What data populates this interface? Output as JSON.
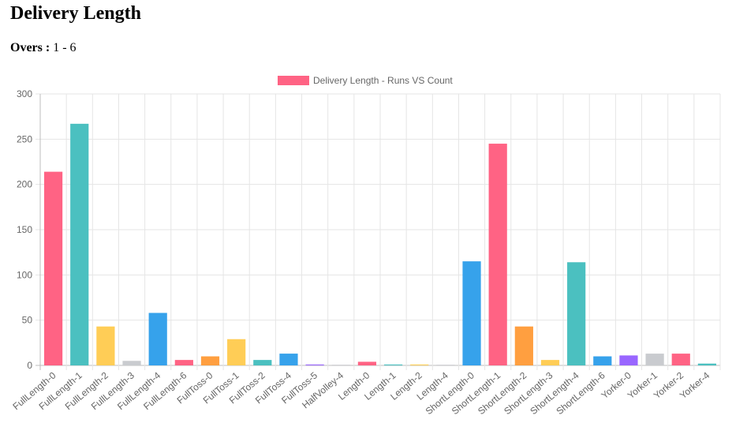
{
  "page": {
    "title": "Delivery Length",
    "overs_label": "Overs :",
    "overs_value": "1 - 6"
  },
  "chart_data": {
    "type": "bar",
    "legend": {
      "label": "Delivery Length - Runs VS Count",
      "color": "#ff6384",
      "position": "top"
    },
    "categories": [
      "FullLength-0",
      "FullLength-1",
      "FullLength-2",
      "FullLength-3",
      "FullLength-4",
      "FullLength-6",
      "FullToss-0",
      "FullToss-1",
      "FullToss-2",
      "FullToss-4",
      "FullToss-5",
      "HalfVolley-4",
      "Length-0",
      "Length-1",
      "Length-2",
      "Length-4",
      "ShortLength-0",
      "ShortLength-1",
      "ShortLength-2",
      "ShortLength-3",
      "ShortLength-4",
      "ShortLength-6",
      "Yorker-0",
      "Yorker-1",
      "Yorker-2",
      "Yorker-4"
    ],
    "values": [
      214,
      267,
      43,
      5,
      58,
      6,
      10,
      29,
      6,
      13,
      1,
      0,
      4,
      1,
      1,
      0,
      115,
      245,
      43,
      6,
      114,
      10,
      11,
      13,
      13,
      2
    ],
    "colors": [
      "#ff6384",
      "#4bc0c0",
      "#ffcd56",
      "#c9cbcf",
      "#36a2eb",
      "#ff6384",
      "#ff9f40",
      "#ffcd56",
      "#4bc0c0",
      "#36a2eb",
      "#9966ff",
      "#c9cbcf",
      "#ff6384",
      "#4bc0c0",
      "#ffcd56",
      "#c9cbcf",
      "#36a2eb",
      "#ff6384",
      "#ff9f40",
      "#ffcd56",
      "#4bc0c0",
      "#36a2eb",
      "#9966ff",
      "#c9cbcf",
      "#ff6384",
      "#4bc0c0"
    ],
    "yticks": [
      0,
      50,
      100,
      150,
      200,
      250,
      300
    ],
    "ylim": [
      0,
      300
    ],
    "grid": true
  }
}
